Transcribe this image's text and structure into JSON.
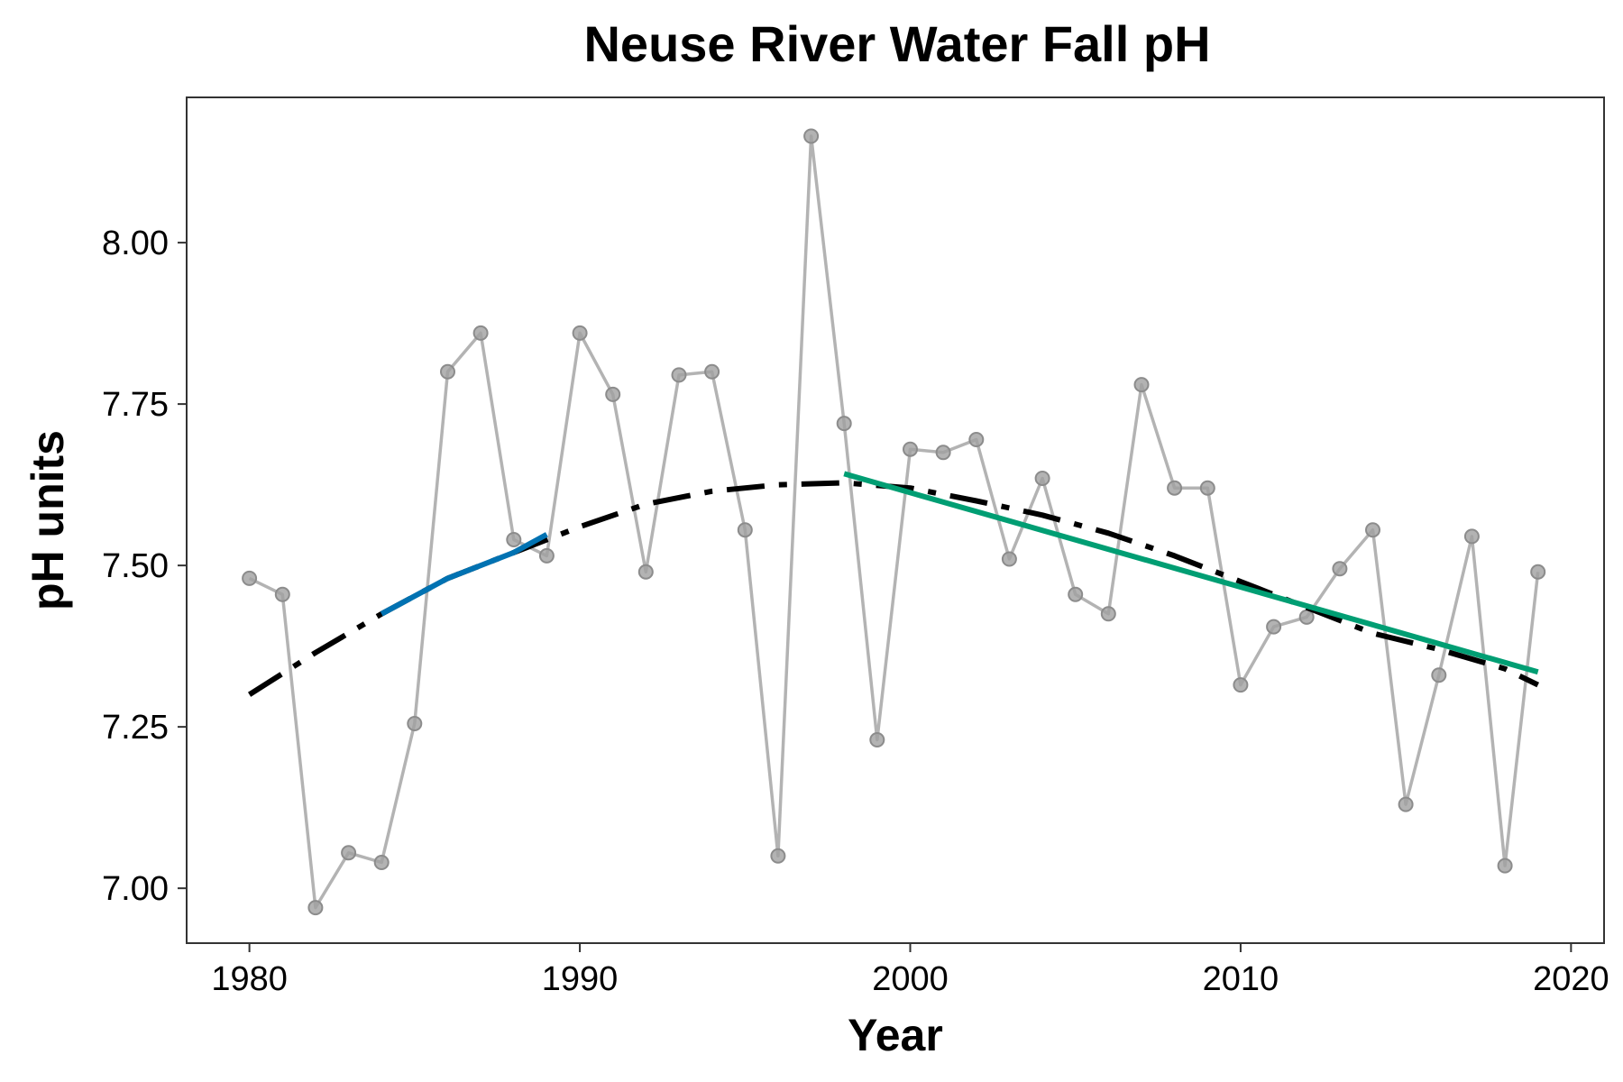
{
  "chart_data": {
    "type": "line",
    "title": "Neuse River Water Fall pH",
    "xlabel": "Year",
    "ylabel": "pH units",
    "xlim": [
      1978.1,
      2021
    ],
    "ylim": [
      6.915,
      8.225
    ],
    "x_ticks": [
      1980,
      1990,
      2000,
      2010,
      2020
    ],
    "y_ticks": [
      "7.00",
      "7.25",
      "7.50",
      "7.75",
      "8.00"
    ],
    "grid": false,
    "legend": "none",
    "series": [
      {
        "kind": "observed",
        "color": "#a6a6a6",
        "x": [
          1980,
          1981,
          1982,
          1983,
          1984,
          1985,
          1986,
          1987,
          1988,
          1989,
          1990,
          1991,
          1992,
          1993,
          1994,
          1995,
          1996,
          1997,
          1998,
          1999,
          2000,
          2001,
          2002,
          2003,
          2004,
          2005,
          2006,
          2007,
          2008,
          2009,
          2010,
          2011,
          2012,
          2013,
          2014,
          2015,
          2016,
          2017,
          2018,
          2019
        ],
        "y": [
          7.48,
          7.455,
          6.97,
          7.055,
          7.04,
          7.255,
          7.8,
          7.86,
          7.54,
          7.515,
          7.86,
          7.765,
          7.49,
          7.795,
          7.8,
          7.555,
          7.05,
          8.165,
          7.72,
          7.23,
          7.68,
          7.675,
          7.695,
          7.51,
          7.635,
          7.455,
          7.425,
          7.78,
          7.62,
          7.62,
          7.315,
          7.405,
          7.42,
          7.495,
          7.555,
          7.13,
          7.33,
          7.545,
          7.035,
          7.49
        ]
      },
      {
        "kind": "smooth-trend",
        "color": "#000000",
        "x": [
          1980,
          1982,
          1984,
          1986,
          1988,
          1990,
          1992,
          1994,
          1996,
          1998,
          2000,
          2002,
          2004,
          2006,
          2008,
          2010,
          2012,
          2014,
          2016,
          2018,
          2019
        ],
        "y": [
          7.3,
          7.365,
          7.425,
          7.48,
          7.52,
          7.56,
          7.595,
          7.615,
          7.625,
          7.628,
          7.62,
          7.6,
          7.578,
          7.55,
          7.515,
          7.475,
          7.435,
          7.395,
          7.37,
          7.34,
          7.315
        ]
      },
      {
        "kind": "segment",
        "color": "#0072b2",
        "x": [
          1984,
          1986,
          1988,
          1989
        ],
        "y": [
          7.425,
          7.48,
          7.52,
          7.548
        ]
      },
      {
        "kind": "segment",
        "color": "#009e73",
        "x": [
          1998,
          2019
        ],
        "y": [
          7.642,
          7.335
        ]
      }
    ]
  }
}
